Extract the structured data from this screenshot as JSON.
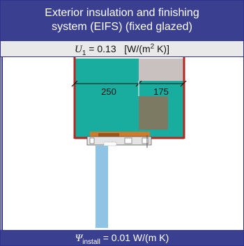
{
  "header": {
    "line1": "Exterior insulation and finishing",
    "line2": "system (EIFS) (fixed glazed)"
  },
  "u_value": {
    "symbol": "U",
    "subscript": "1",
    "equals": " = 0.13",
    "unit_prefix": "[W/(m",
    "unit_exp": "2",
    "unit_suffix": " K)]"
  },
  "dimensions": {
    "left": "250",
    "right": "175"
  },
  "footer": {
    "symbol": "Ψ",
    "subscript": "install",
    "value": " = 0.01 W/(m K)"
  },
  "colors": {
    "header_bg": "#3a3f8f",
    "insulation": "#18ad9e",
    "wall_frame": "#b5281f",
    "glazing": "#8fc4e4",
    "brown_block": "#7c7a62",
    "light_block": "#c9c1bf",
    "frame_orange": "#d07a2a"
  }
}
